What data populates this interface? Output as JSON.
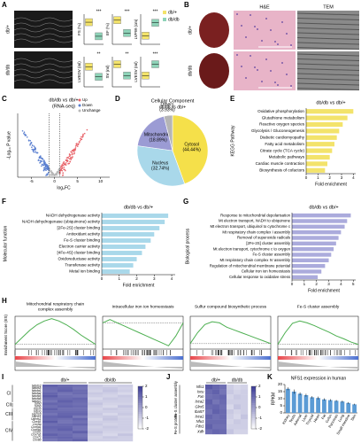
{
  "A": {
    "letter": "A",
    "groups": [
      "db/+",
      "db/db"
    ],
    "colors": [
      "#f3e36b",
      "#8ed3b8"
    ],
    "metrics": [
      {
        "name": "FS (%)",
        "sig": "***",
        "values": [
          42,
          28
        ],
        "ylim": [
          20,
          50
        ]
      },
      {
        "name": "EF (%)",
        "sig": "***",
        "values": [
          72,
          55
        ],
        "ylim": [
          40,
          80
        ]
      },
      {
        "name": "LVPW (cm)",
        "sig": "***",
        "values": [
          0.07,
          0.1
        ],
        "ylim": [
          0.05,
          0.12
        ]
      },
      {
        "name": "LVEDV (ml)",
        "sig": "**",
        "values": [
          0.08,
          0.06
        ],
        "ylim": [
          0.04,
          0.1
        ]
      },
      {
        "name": "SV (ml)",
        "sig": "**",
        "values": [
          0.05,
          0.035
        ],
        "ylim": [
          0.02,
          0.06
        ]
      },
      {
        "name": "LVESV (ml)",
        "sig": "***",
        "values": [
          0.025,
          0.04
        ],
        "ylim": [
          0.01,
          0.05
        ]
      }
    ]
  },
  "B": {
    "letter": "B",
    "columns": [
      "H&E",
      "TEM"
    ],
    "rows": [
      "db/+",
      "db/db"
    ]
  },
  "C": {
    "letter": "C",
    "title": [
      "db/db vs db/+",
      "(RNA-seq)"
    ],
    "xlabel": "log₂FC",
    "ylabel": "-Log₁₀ P value",
    "xlim": [
      -8,
      12
    ],
    "xticks": [
      -5,
      0,
      5,
      10
    ],
    "legend": [
      "Up",
      "Down",
      "Unchange"
    ],
    "colors": [
      "#e8646a",
      "#5a7fd0",
      "#b8b8b8"
    ]
  },
  "D": {
    "letter": "D",
    "type": "pie",
    "title": "Cellular Component",
    "subtitle": "db/db vs db/+",
    "categories": [
      "Cytosol",
      "Nucleus",
      "Mitochondrion",
      "Others"
    ],
    "values": [
      44.44,
      32.74,
      18.89,
      3.93
    ],
    "value_labels": [
      "(44.44%)",
      "(32.74%)",
      "(18.89%)",
      "(3.93%)"
    ],
    "colors": [
      "#f5e04a",
      "#a9d8ea",
      "#9b9bd4",
      "#b5b5b5"
    ]
  },
  "E": {
    "letter": "E",
    "type": "barh",
    "title": "db/db vs db/+",
    "xlabel": "Fold enrichment",
    "ylabel": "KEGG Pathway",
    "color": "#f3e36b",
    "categories": [
      "Oxidative phosphorylation",
      "Glutathione metabolism",
      "Reactive oxygen species",
      "Glycolysis / Gluconeogenesis",
      "Diabetic cardiomyopathy",
      "Fatty acid metabolism",
      "Citrate cycle (TCA cycle)",
      "Metabolic pathways",
      "Cardiac muscle contraction",
      "Biosynthesis of cofactors"
    ],
    "values": [
      4.0,
      3.5,
      3.1,
      2.8,
      2.6,
      2.4,
      2.2,
      2.0,
      1.8,
      1.6
    ],
    "xlim": [
      0,
      4.2
    ],
    "xticks": [
      0,
      1,
      2,
      3,
      4
    ],
    "highlighted": [
      4,
      8
    ],
    "highlight_color": "#e02020"
  },
  "F": {
    "letter": "F",
    "type": "barh",
    "title": "db/db vs db/+",
    "xlabel": "Fold enrichment",
    "ylabel": "Molecular function",
    "color": "#a9d8ea",
    "categories": [
      "NADH dehydrogenase activity",
      "NADH dehydrogenase (ubiquinone) activity",
      "[2Fe-2S] cluster binding",
      "Antioxidant activity",
      "Fe-S cluster binding",
      "Electron carrier activity",
      "[4Fe-4S] cluster binding",
      "Oxidoreductase activity",
      "Transferase activity",
      "Metal ion binding"
    ],
    "values": [
      3.8,
      3.6,
      3.3,
      3.0,
      2.8,
      2.5,
      2.3,
      2.0,
      1.8,
      1.6
    ],
    "xlim": [
      0,
      4.2
    ],
    "xticks": [
      0,
      1,
      2,
      3,
      4
    ],
    "highlighted": [
      2,
      4,
      6
    ],
    "highlight_color": "#e02020"
  },
  "G": {
    "letter": "G",
    "type": "barh",
    "title": "db/db vs db/+",
    "xlabel": "Fold enrichment",
    "ylabel": "Biological process",
    "color": "#ababdc",
    "categories": [
      "Response to mitochondrial depolarisation",
      "Mt electron transport, NADH to ubiquinone",
      "Mt electron transport, ubiquinol to cytochrome c",
      "Mt respiratory chain complex I assembly",
      "Removal of superoxide radicals",
      "[2Fe-2S] cluster assembly",
      "Mt electron transport, cytochrome c to oxygen",
      "Fe-S cluster assembly",
      "Mt respiratory chain complex IV assembly",
      "Regulation of mitochondrial membrane potential",
      "Cellular iron ion homeostasis",
      "Cellular response to oxidative stress"
    ],
    "values": [
      4.8,
      4.5,
      4.3,
      4.0,
      3.8,
      3.6,
      3.4,
      3.2,
      3.0,
      2.7,
      2.4,
      2.1
    ],
    "xlim": [
      0,
      5.2
    ],
    "xticks": [
      0,
      1,
      2,
      3,
      4,
      5
    ],
    "highlighted": [
      5,
      7
    ],
    "highlight_color": "#e02020"
  },
  "H": {
    "letter": "H",
    "ylabel": "Enrichment Score (ES)",
    "color": "#4caf50",
    "plots": [
      {
        "title": [
          "Mitochondrial respiratory chain",
          "complex assembly"
        ],
        "es": [
          0,
          0.15,
          0.3,
          0.42,
          0.5,
          0.55,
          0.5,
          0.42,
          0.32,
          0.2,
          0.1,
          0
        ],
        "ylim": [
          -0.1,
          0.6
        ]
      },
      {
        "title": [
          "Intracellular iron ion homeostasis"
        ],
        "es": [
          0,
          0.05,
          0,
          -0.05,
          -0.1,
          -0.15,
          -0.2,
          -0.25,
          -0.3,
          -0.35,
          -0.2,
          0
        ],
        "ylim": [
          -0.4,
          0.1
        ]
      },
      {
        "title": [
          "Sulfur compound biosynthetic process"
        ],
        "es": [
          0,
          0.2,
          0.35,
          0.4,
          0.38,
          0.3,
          0.25,
          0.2,
          0.15,
          0.1,
          0.05,
          0
        ],
        "ylim": [
          -0.1,
          0.5
        ]
      },
      {
        "title": [
          "Fe-S cluster assembly"
        ],
        "es": [
          0,
          0.25,
          0.45,
          0.5,
          0.46,
          0.4,
          0.33,
          0.26,
          0.18,
          0.12,
          0.05,
          0
        ],
        "ylim": [
          -0.1,
          0.6
        ]
      }
    ]
  },
  "I": {
    "letter": "I",
    "columns": [
      "db/+",
      "db/db"
    ],
    "columns_per_group": 3,
    "scale_lim": [
      -2,
      2
    ],
    "scale_ticks": [
      2,
      1,
      0,
      -1,
      -2
    ],
    "low_color": "#ffffff",
    "high_color": "#3a3a96",
    "row_groups": [
      {
        "name": "CI",
        "rows": 7
      },
      {
        "name": "CII",
        "rows": 2
      },
      {
        "name": "CIII",
        "rows": 5
      },
      {
        "name": "CIV",
        "rows": 8
      }
    ],
    "rows": [
      "Ndufs3",
      "Ndufs5",
      "Ndufa1",
      "Ndufa4",
      "Ndufb5",
      "Ndufb8",
      "Ndufv2",
      "Sdhd",
      "Sdhb",
      "Uqcrb",
      "Uqcrq",
      "Uqcr10",
      "Uqcrc1",
      "Uqcrfs1",
      "Cox4i1",
      "Cox5a",
      "Cox6a1",
      "Cox6b1",
      "Cox6c",
      "Cox7a1",
      "Cox7c",
      "Cox8b"
    ],
    "values": [
      [
        1.2,
        1.0,
        0.9,
        -0.9,
        -1.1,
        -1.0
      ],
      [
        1.0,
        1.1,
        0.8,
        -1.0,
        -0.9,
        -1.1
      ],
      [
        0.9,
        1.2,
        1.0,
        -1.1,
        -0.8,
        -1.0
      ],
      [
        1.1,
        0.8,
        1.0,
        -0.9,
        -1.0,
        -1.2
      ],
      [
        1.3,
        0.9,
        0.8,
        -1.0,
        -1.1,
        -0.9
      ],
      [
        1.0,
        1.0,
        1.1,
        -1.2,
        -0.9,
        -1.0
      ],
      [
        0.8,
        1.2,
        1.0,
        -1.0,
        -1.0,
        -1.0
      ],
      [
        1.1,
        1.0,
        0.9,
        -0.8,
        -1.1,
        -1.1
      ],
      [
        0.9,
        1.1,
        1.0,
        -1.0,
        -1.2,
        -0.8
      ],
      [
        1.2,
        0.9,
        0.9,
        -1.1,
        -0.9,
        -1.0
      ],
      [
        1.0,
        1.0,
        1.0,
        -1.0,
        -1.0,
        -1.0
      ],
      [
        0.8,
        1.1,
        1.1,
        -0.9,
        -1.2,
        -0.9
      ],
      [
        1.1,
        1.2,
        0.7,
        -1.0,
        -0.9,
        -1.1
      ],
      [
        1.0,
        0.9,
        1.1,
        -1.2,
        -0.8,
        -1.0
      ],
      [
        1.3,
        0.8,
        0.9,
        -1.0,
        -1.0,
        -1.0
      ],
      [
        0.9,
        1.0,
        1.1,
        -0.9,
        -1.1,
        -1.0
      ],
      [
        1.1,
        1.1,
        0.8,
        -1.1,
        -0.9,
        -1.0
      ],
      [
        1.0,
        1.2,
        0.8,
        -1.0,
        -1.0,
        -1.0
      ],
      [
        0.9,
        0.9,
        1.2,
        -0.8,
        -1.1,
        -1.1
      ],
      [
        1.2,
        1.0,
        0.8,
        -1.0,
        -1.2,
        -0.8
      ],
      [
        1.0,
        1.1,
        0.9,
        -1.1,
        -0.9,
        -1.0
      ],
      [
        0.8,
        1.0,
        1.2,
        -1.0,
        -1.0,
        -1.0
      ]
    ]
  },
  "J": {
    "letter": "J",
    "columns": [
      "db/+",
      "db/db"
    ],
    "columns_per_group": 3,
    "scale_lim": [
      -2,
      2
    ],
    "scale_ticks": [
      2,
      1,
      0,
      -1,
      -2
    ],
    "low_color": "#ffffff",
    "high_color": "#3a3a96",
    "row_groups": [
      {
        "name": "Fe-S cluster assembly",
        "rows": 6
      },
      {
        "name": "Fe-S protein",
        "rows": 4
      }
    ],
    "rows": [
      "Nfs1",
      "Iscu",
      "Fxn",
      "Isca2",
      "Glrx5",
      "Iba57",
      "Isca1",
      "Nfu1",
      "Fdx1",
      "Xdh"
    ],
    "highlighted": [
      0
    ],
    "highlight_color": "#e02020",
    "values": [
      [
        1.4,
        1.1,
        0.9,
        -1.0,
        -1.2,
        -1.1
      ],
      [
        1.0,
        1.2,
        0.8,
        -0.9,
        -1.1,
        -1.0
      ],
      [
        0.9,
        1.0,
        1.1,
        -1.1,
        -0.9,
        -1.0
      ],
      [
        1.2,
        0.8,
        1.0,
        -1.0,
        -1.0,
        -1.0
      ],
      [
        1.0,
        1.1,
        0.9,
        -1.2,
        -0.8,
        -1.0
      ],
      [
        0.8,
        1.2,
        1.0,
        -0.9,
        -1.1,
        -1.0
      ],
      [
        1.1,
        0.9,
        1.0,
        -1.0,
        -1.2,
        -0.8
      ],
      [
        1.0,
        1.0,
        1.0,
        -1.1,
        -0.9,
        -1.0
      ],
      [
        1.2,
        0.9,
        0.9,
        -1.0,
        -1.0,
        -1.0
      ],
      [
        0.9,
        1.1,
        1.0,
        -0.8,
        -1.1,
        -1.1
      ]
    ]
  },
  "K": {
    "letter": "K",
    "title": "NFS1 expression in human",
    "ylabel": "RPKM",
    "color": "#5b9bd5",
    "categories": [
      "Kidney",
      "Testis",
      "Adrenal",
      "Liver",
      "Thyroid",
      "Heart",
      "Fat",
      "Colon",
      "Pancreas",
      "Lung",
      "Small intestine",
      "Skin"
    ],
    "values": [
      17,
      15,
      13.5,
      12.5,
      11,
      10.5,
      9.5,
      9,
      8.5,
      8,
      7,
      6
    ],
    "errors": [
      1,
      1.5,
      1,
      1,
      0.8,
      1,
      0.8,
      0.7,
      0.6,
      0.7,
      0.6,
      0.5
    ],
    "ylim": [
      0,
      20
    ],
    "yticks": [
      0,
      5,
      10,
      15,
      20
    ],
    "highlighted": [
      5
    ],
    "highlight_color": "#e02020"
  }
}
